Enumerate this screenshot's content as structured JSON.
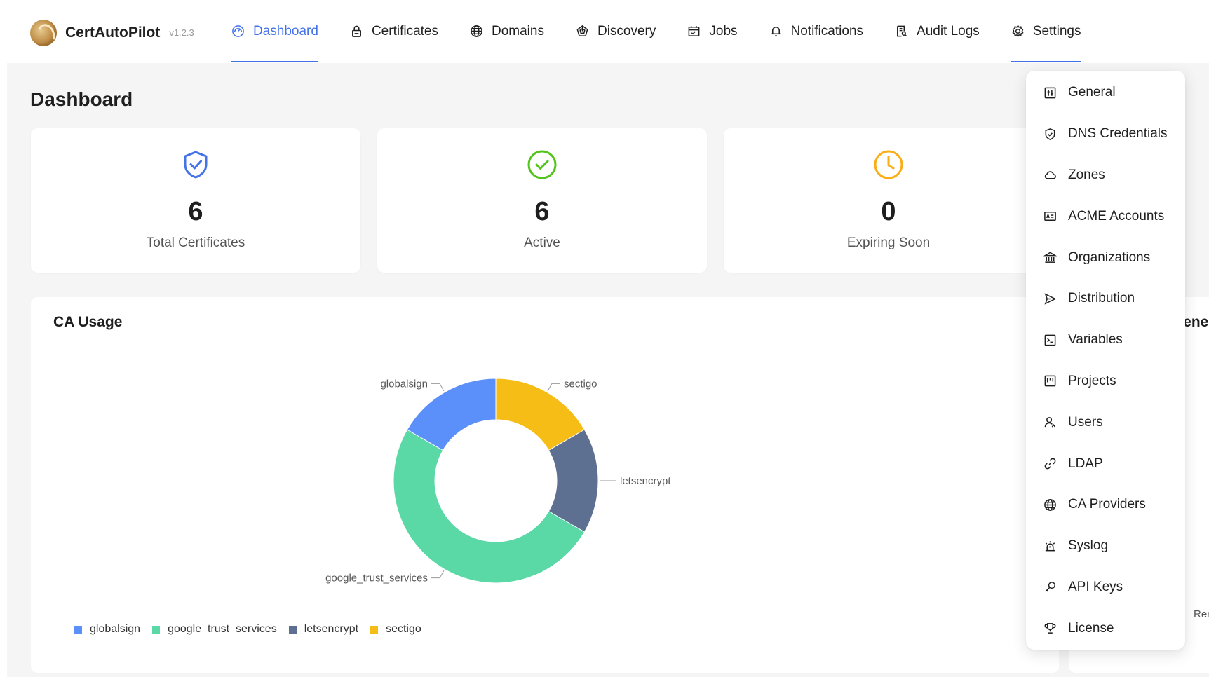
{
  "app": {
    "name": "CertAutoPilot",
    "version": "v1.2.3"
  },
  "nav": [
    {
      "label": "Dashboard",
      "icon": "dashboard-icon",
      "active": true
    },
    {
      "label": "Certificates",
      "icon": "lock-icon"
    },
    {
      "label": "Domains",
      "icon": "globe-icon"
    },
    {
      "label": "Discovery",
      "icon": "radar-icon"
    },
    {
      "label": "Jobs",
      "icon": "calendar-check-icon"
    },
    {
      "label": "Notifications",
      "icon": "bell-icon"
    },
    {
      "label": "Audit Logs",
      "icon": "audit-file-icon"
    },
    {
      "label": "Settings",
      "icon": "gear-icon",
      "open": true
    }
  ],
  "page": {
    "title": "Dashboard"
  },
  "stats": [
    {
      "value": "6",
      "label": "Total Certificates",
      "icon": "shield-check-icon",
      "color": "#4472e8"
    },
    {
      "value": "6",
      "label": "Active",
      "icon": "check-circle-icon",
      "color": "#52c41a"
    },
    {
      "value": "0",
      "label": "Expiring Soon",
      "icon": "clock-icon",
      "color": "#faad14"
    }
  ],
  "ca_usage": {
    "title": "CA Usage"
  },
  "right_card": {
    "title": "Rene",
    "footer": "Rene"
  },
  "settings_menu": [
    {
      "label": "General",
      "icon": "sliders-icon"
    },
    {
      "label": "DNS Credentials",
      "icon": "shield-icon"
    },
    {
      "label": "Zones",
      "icon": "cloud-icon"
    },
    {
      "label": "ACME Accounts",
      "icon": "id-card-icon"
    },
    {
      "label": "Organizations",
      "icon": "bank-icon"
    },
    {
      "label": "Distribution",
      "icon": "send-icon"
    },
    {
      "label": "Variables",
      "icon": "terminal-icon"
    },
    {
      "label": "Projects",
      "icon": "project-icon"
    },
    {
      "label": "Users",
      "icon": "users-icon"
    },
    {
      "label": "LDAP",
      "icon": "link-icon"
    },
    {
      "label": "CA Providers",
      "icon": "globe-icon"
    },
    {
      "label": "Syslog",
      "icon": "alarm-icon"
    },
    {
      "label": "API Keys",
      "icon": "key-icon"
    },
    {
      "label": "License",
      "icon": "trophy-icon"
    }
  ],
  "chart_data": {
    "type": "pie",
    "title": "CA Usage",
    "donut": true,
    "categories": [
      "globalsign",
      "google_trust_services",
      "letsencrypt",
      "sectigo"
    ],
    "values": [
      1,
      3,
      1,
      1
    ],
    "colors": [
      "#5b8ff9",
      "#5ad8a6",
      "#5d7092",
      "#f6bd16"
    ],
    "legend": "bottom-left",
    "start_angle_deg": 0,
    "draw_order": [
      "sectigo",
      "letsencrypt",
      "google_trust_services",
      "globalsign"
    ]
  }
}
